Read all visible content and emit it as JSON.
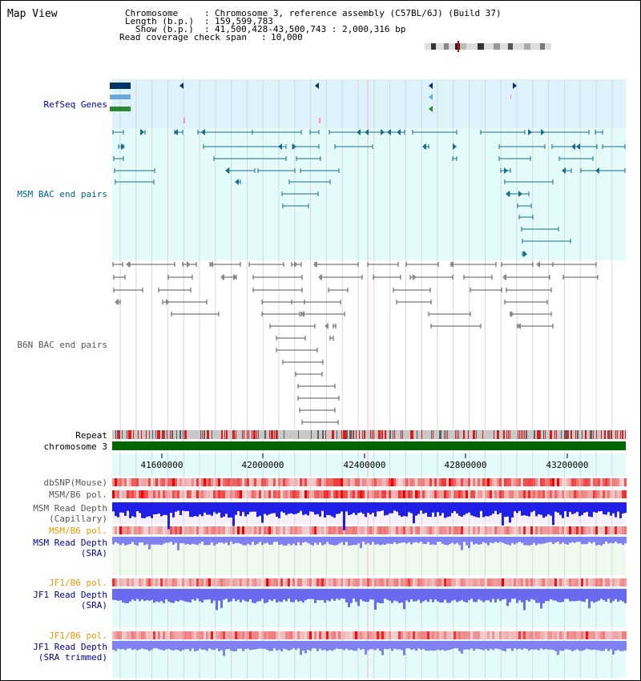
{
  "title": "Map View",
  "header": {
    "chromosome_key": "Chromosome",
    "chromosome_val": "Chromosome 3, reference assembly (C57BL/6J) (Build 37)",
    "length_key": "Length (b.p.)",
    "length_val": "159,599,783",
    "show_key": "Show (b.p.)",
    "show_val": "41,500,428-43,500,743 : 2,000,316 bp",
    "coverage_key": "Read coverage check span",
    "coverage_val": "10,000"
  },
  "tracks": {
    "refseq": "RefSeq Genes",
    "msm_bac": "MSM BAC end pairs",
    "b6n_bac": "B6N BAC end pairs",
    "repeat": "Repeat",
    "chromosome": "chromosome 3",
    "dbsnp": "dbSNP(Mouse)",
    "msm_b6_pol_1": "MSM/B6 pol.",
    "msm_read_depth_cap_1": "MSM Read Depth",
    "msm_read_depth_cap_2": "(Capillary)",
    "msm_b6_pol_2": "MSM/B6 pol.",
    "msm_read_depth_sra_1": "MSM Read Depth",
    "msm_read_depth_sra_2": "(SRA)",
    "jf1_b6_pol_1": "JF1/B6 pol.",
    "jf1_read_depth_1": "JF1 Read Depth",
    "jf1_read_depth_2": "(SRA)",
    "jf1_b6_pol_2": "JF1/B6 pol.",
    "jf1_trim_1": "JF1 Read Depth",
    "jf1_trim_2": "(SRA trimmed)"
  },
  "axis": {
    "ticks": [
      "41600000",
      "42000000",
      "42400000",
      "42800000",
      "43200000"
    ]
  },
  "colors": {
    "refseq_bg": "#ddf2fb",
    "msm_bac_bg": "#e4fbfb",
    "b6n_bg": "#ffffff",
    "chrom_green": "#006600",
    "navy": "#00009c",
    "teal": "#006680",
    "orange": "#e69900",
    "depth_blue": "#1f1fe6",
    "depth_light": "#8080f0"
  }
}
